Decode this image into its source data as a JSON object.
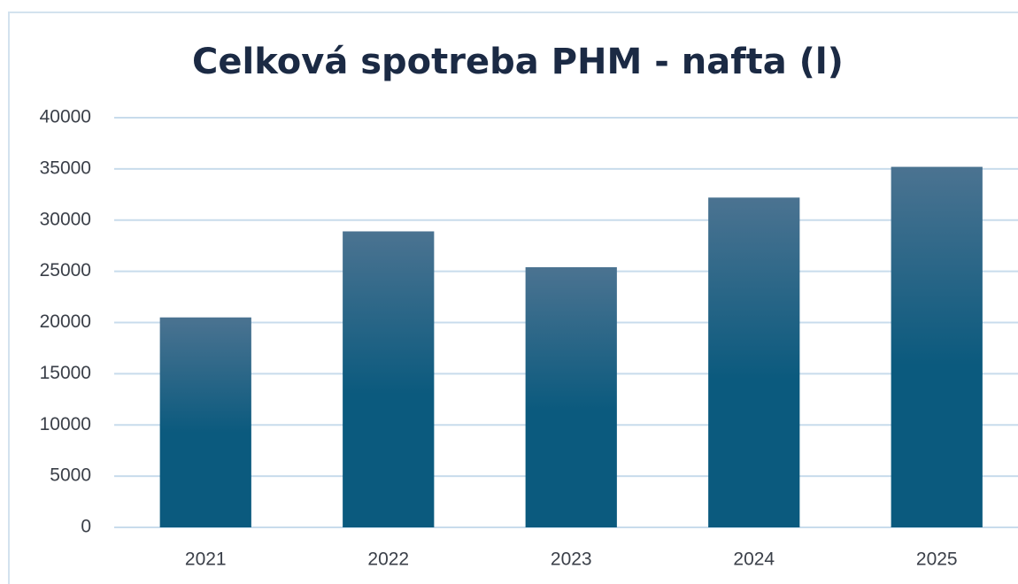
{
  "chart_data": {
    "type": "bar",
    "title": "Celková spotreba PHM - nafta (l)",
    "categories": [
      "2021",
      "2022",
      "2023",
      "2024",
      "2025"
    ],
    "values": [
      20500,
      28900,
      25400,
      32200,
      35200
    ],
    "color": "#0b5a7e",
    "gradient_top": "#4b7391",
    "ylim": [
      0,
      40000
    ],
    "yticks": [
      0,
      5000,
      10000,
      15000,
      20000,
      25000,
      30000,
      35000,
      40000
    ],
    "grid": true
  }
}
